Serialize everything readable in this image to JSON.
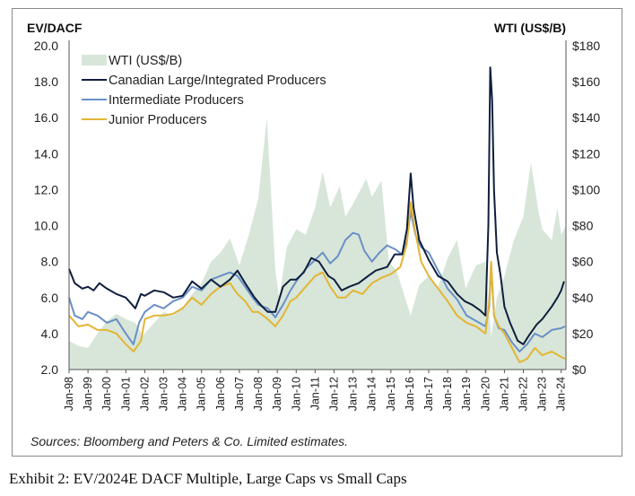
{
  "caption": "Exhibit 2: EV/2024E DACF Multiple, Large Caps vs Small Caps",
  "chart_data": {
    "type": "line",
    "ylabel_left": "EV/DACF",
    "ylabel_right": "WTI (US$/B)",
    "ylim_left": [
      2.0,
      20.0
    ],
    "ylim_right": [
      0,
      180
    ],
    "yticks_left": [
      "2.0",
      "4.0",
      "6.0",
      "8.0",
      "10.0",
      "12.0",
      "14.0",
      "16.0",
      "18.0",
      "20.0"
    ],
    "yticks_right": [
      "$0",
      "$20",
      "$40",
      "$60",
      "$80",
      "$100",
      "$120",
      "$140",
      "$160",
      "$180"
    ],
    "xlim": [
      1998.0,
      2024.25
    ],
    "xticks": [
      "Jan-98",
      "Jan-99",
      "Jan-00",
      "Jan-01",
      "Jan-02",
      "Jan-03",
      "Jan-04",
      "Jan-05",
      "Jan-06",
      "Jan-07",
      "Jan-08",
      "Jan-09",
      "Jan-10",
      "Jan-11",
      "Jan-12",
      "Jan-13",
      "Jan-14",
      "Jan-15",
      "Jan-16",
      "Jan-17",
      "Jan-18",
      "Jan-19",
      "Jan-20",
      "Jan-21",
      "Jan-22",
      "Jan-23",
      "Jan-24"
    ],
    "legend_position": "top-left",
    "grid": false,
    "source": "Sources: Bloomberg and Peters & Co. Limited estimates.",
    "series": [
      {
        "name": "WTI (US$/B)",
        "kind": "area",
        "axis": "right",
        "color": "#d7e6d9",
        "points": [
          [
            1998.0,
            16
          ],
          [
            1998.5,
            13
          ],
          [
            1999.0,
            12
          ],
          [
            1999.5,
            20
          ],
          [
            2000.0,
            27
          ],
          [
            2000.5,
            31
          ],
          [
            2001.0,
            28
          ],
          [
            2001.5,
            26
          ],
          [
            2001.9,
            19
          ],
          [
            2002.5,
            26
          ],
          [
            2003.0,
            32
          ],
          [
            2003.5,
            30
          ],
          [
            2004.0,
            34
          ],
          [
            2004.5,
            42
          ],
          [
            2005.0,
            48
          ],
          [
            2005.5,
            60
          ],
          [
            2006.0,
            65
          ],
          [
            2006.5,
            73
          ],
          [
            2007.0,
            58
          ],
          [
            2007.5,
            75
          ],
          [
            2008.0,
            95
          ],
          [
            2008.45,
            140
          ],
          [
            2008.9,
            55
          ],
          [
            2009.1,
            40
          ],
          [
            2009.5,
            68
          ],
          [
            2010.0,
            78
          ],
          [
            2010.5,
            75
          ],
          [
            2011.0,
            90
          ],
          [
            2011.4,
            110
          ],
          [
            2011.8,
            90
          ],
          [
            2012.3,
            102
          ],
          [
            2012.6,
            85
          ],
          [
            2013.0,
            92
          ],
          [
            2013.7,
            106
          ],
          [
            2014.0,
            96
          ],
          [
            2014.5,
            105
          ],
          [
            2014.9,
            60
          ],
          [
            2015.3,
            55
          ],
          [
            2015.6,
            45
          ],
          [
            2016.05,
            30
          ],
          [
            2016.5,
            47
          ],
          [
            2017.0,
            52
          ],
          [
            2017.5,
            46
          ],
          [
            2018.0,
            62
          ],
          [
            2018.5,
            72
          ],
          [
            2018.95,
            45
          ],
          [
            2019.5,
            58
          ],
          [
            2020.0,
            60
          ],
          [
            2020.3,
            18
          ],
          [
            2020.6,
            40
          ],
          [
            2021.0,
            52
          ],
          [
            2021.5,
            72
          ],
          [
            2022.0,
            85
          ],
          [
            2022.4,
            115
          ],
          [
            2022.8,
            88
          ],
          [
            2023.0,
            78
          ],
          [
            2023.5,
            72
          ],
          [
            2023.8,
            90
          ],
          [
            2024.0,
            75
          ],
          [
            2024.25,
            80
          ]
        ]
      },
      {
        "name": "Canadian Large/Integrated Producers",
        "kind": "line",
        "axis": "left",
        "color": "#0f1e3d",
        "points": [
          [
            1998.0,
            7.6
          ],
          [
            1998.3,
            6.8
          ],
          [
            1998.7,
            6.5
          ],
          [
            1999.0,
            6.6
          ],
          [
            1999.3,
            6.4
          ],
          [
            1999.6,
            6.8
          ],
          [
            2000.0,
            6.5
          ],
          [
            2000.5,
            6.2
          ],
          [
            2001.0,
            6.0
          ],
          [
            2001.5,
            5.4
          ],
          [
            2001.8,
            6.2
          ],
          [
            2002.0,
            6.1
          ],
          [
            2002.5,
            6.4
          ],
          [
            2003.0,
            6.3
          ],
          [
            2003.5,
            6.0
          ],
          [
            2004.0,
            6.1
          ],
          [
            2004.5,
            6.9
          ],
          [
            2005.0,
            6.5
          ],
          [
            2005.5,
            7.0
          ],
          [
            2006.0,
            6.6
          ],
          [
            2006.5,
            7.0
          ],
          [
            2006.9,
            7.5
          ],
          [
            2007.3,
            6.8
          ],
          [
            2007.8,
            6.0
          ],
          [
            2008.2,
            5.5
          ],
          [
            2008.5,
            5.2
          ],
          [
            2008.9,
            5.2
          ],
          [
            2009.3,
            6.6
          ],
          [
            2009.7,
            7.0
          ],
          [
            2010.0,
            7.0
          ],
          [
            2010.4,
            7.4
          ],
          [
            2010.8,
            8.2
          ],
          [
            2011.2,
            8.0
          ],
          [
            2011.7,
            7.2
          ],
          [
            2012.0,
            7.0
          ],
          [
            2012.4,
            6.4
          ],
          [
            2012.8,
            6.6
          ],
          [
            2013.3,
            6.8
          ],
          [
            2013.8,
            7.2
          ],
          [
            2014.2,
            7.5
          ],
          [
            2014.8,
            7.7
          ],
          [
            2015.2,
            8.4
          ],
          [
            2015.6,
            8.4
          ],
          [
            2015.85,
            9.8
          ],
          [
            2016.05,
            12.9
          ],
          [
            2016.2,
            11.0
          ],
          [
            2016.5,
            9.2
          ],
          [
            2017.0,
            8.1
          ],
          [
            2017.5,
            7.2
          ],
          [
            2018.0,
            6.9
          ],
          [
            2018.5,
            6.2
          ],
          [
            2018.9,
            5.8
          ],
          [
            2019.3,
            5.6
          ],
          [
            2019.7,
            5.3
          ],
          [
            2020.0,
            5.0
          ],
          [
            2020.15,
            10.0
          ],
          [
            2020.25,
            18.8
          ],
          [
            2020.35,
            17.0
          ],
          [
            2020.45,
            12.0
          ],
          [
            2020.6,
            8.5
          ],
          [
            2020.8,
            7.2
          ],
          [
            2021.0,
            5.5
          ],
          [
            2021.3,
            4.6
          ],
          [
            2021.7,
            3.6
          ],
          [
            2022.0,
            3.4
          ],
          [
            2022.3,
            3.9
          ],
          [
            2022.7,
            4.5
          ],
          [
            2023.0,
            4.8
          ],
          [
            2023.5,
            5.5
          ],
          [
            2023.8,
            6.0
          ],
          [
            2024.0,
            6.4
          ],
          [
            2024.15,
            6.9
          ]
        ]
      },
      {
        "name": "Intermediate Producers",
        "kind": "line",
        "axis": "left",
        "color": "#6a8fc7",
        "points": [
          [
            1998.0,
            6.0
          ],
          [
            1998.3,
            5.0
          ],
          [
            1998.7,
            4.8
          ],
          [
            1999.0,
            5.2
          ],
          [
            1999.5,
            5.0
          ],
          [
            2000.0,
            4.6
          ],
          [
            2000.5,
            4.8
          ],
          [
            2001.0,
            4.0
          ],
          [
            2001.4,
            3.4
          ],
          [
            2001.7,
            4.6
          ],
          [
            2002.0,
            5.2
          ],
          [
            2002.5,
            5.6
          ],
          [
            2003.0,
            5.4
          ],
          [
            2003.5,
            5.8
          ],
          [
            2004.0,
            6.0
          ],
          [
            2004.5,
            6.6
          ],
          [
            2005.0,
            6.4
          ],
          [
            2005.5,
            7.0
          ],
          [
            2006.0,
            7.2
          ],
          [
            2006.5,
            7.4
          ],
          [
            2006.9,
            7.2
          ],
          [
            2007.3,
            6.6
          ],
          [
            2007.7,
            6.0
          ],
          [
            2008.0,
            5.6
          ],
          [
            2008.5,
            5.4
          ],
          [
            2008.9,
            4.9
          ],
          [
            2009.3,
            5.6
          ],
          [
            2009.7,
            6.4
          ],
          [
            2010.0,
            6.9
          ],
          [
            2010.5,
            7.6
          ],
          [
            2011.0,
            8.1
          ],
          [
            2011.4,
            8.5
          ],
          [
            2011.8,
            7.9
          ],
          [
            2012.2,
            8.3
          ],
          [
            2012.6,
            9.2
          ],
          [
            2013.0,
            9.6
          ],
          [
            2013.3,
            9.5
          ],
          [
            2013.6,
            8.6
          ],
          [
            2014.0,
            8.0
          ],
          [
            2014.4,
            8.5
          ],
          [
            2014.8,
            8.9
          ],
          [
            2015.2,
            8.7
          ],
          [
            2015.6,
            8.4
          ],
          [
            2015.85,
            9.2
          ],
          [
            2016.05,
            10.8
          ],
          [
            2016.3,
            9.5
          ],
          [
            2016.6,
            8.8
          ],
          [
            2017.0,
            8.5
          ],
          [
            2017.5,
            7.5
          ],
          [
            2018.0,
            6.5
          ],
          [
            2018.5,
            5.9
          ],
          [
            2019.0,
            5.0
          ],
          [
            2019.5,
            4.7
          ],
          [
            2020.0,
            4.4
          ],
          [
            2020.2,
            5.5
          ],
          [
            2020.3,
            7.8
          ],
          [
            2020.45,
            5.0
          ],
          [
            2020.7,
            4.3
          ],
          [
            2021.0,
            4.2
          ],
          [
            2021.4,
            3.5
          ],
          [
            2021.8,
            3.0
          ],
          [
            2022.2,
            3.4
          ],
          [
            2022.6,
            4.0
          ],
          [
            2023.0,
            3.8
          ],
          [
            2023.5,
            4.2
          ],
          [
            2024.0,
            4.3
          ],
          [
            2024.2,
            4.4
          ]
        ]
      },
      {
        "name": "Junior Producers",
        "kind": "line",
        "axis": "left",
        "color": "#e3b533",
        "points": [
          [
            1998.0,
            5.0
          ],
          [
            1998.5,
            4.4
          ],
          [
            1999.0,
            4.5
          ],
          [
            1999.5,
            4.2
          ],
          [
            2000.0,
            4.2
          ],
          [
            2000.5,
            4.0
          ],
          [
            2001.0,
            3.4
          ],
          [
            2001.4,
            3.0
          ],
          [
            2001.8,
            3.6
          ],
          [
            2002.0,
            4.8
          ],
          [
            2002.5,
            5.0
          ],
          [
            2003.0,
            5.0
          ],
          [
            2003.5,
            5.1
          ],
          [
            2004.0,
            5.4
          ],
          [
            2004.5,
            6.0
          ],
          [
            2005.0,
            5.6
          ],
          [
            2005.5,
            6.2
          ],
          [
            2006.0,
            6.6
          ],
          [
            2006.5,
            6.8
          ],
          [
            2006.9,
            6.2
          ],
          [
            2007.3,
            5.8
          ],
          [
            2007.7,
            5.2
          ],
          [
            2008.0,
            5.2
          ],
          [
            2008.5,
            4.8
          ],
          [
            2008.9,
            4.4
          ],
          [
            2009.3,
            5.0
          ],
          [
            2009.7,
            5.8
          ],
          [
            2010.0,
            6.0
          ],
          [
            2010.5,
            6.6
          ],
          [
            2011.0,
            7.2
          ],
          [
            2011.4,
            7.4
          ],
          [
            2011.8,
            6.6
          ],
          [
            2012.2,
            6.0
          ],
          [
            2012.6,
            6.0
          ],
          [
            2013.0,
            6.4
          ],
          [
            2013.5,
            6.2
          ],
          [
            2014.0,
            6.8
          ],
          [
            2014.5,
            7.1
          ],
          [
            2015.0,
            7.3
          ],
          [
            2015.5,
            7.7
          ],
          [
            2015.85,
            9.0
          ],
          [
            2016.05,
            11.3
          ],
          [
            2016.3,
            9.6
          ],
          [
            2016.6,
            8.0
          ],
          [
            2017.0,
            7.2
          ],
          [
            2017.5,
            6.5
          ],
          [
            2018.0,
            5.8
          ],
          [
            2018.5,
            5.0
          ],
          [
            2019.0,
            4.6
          ],
          [
            2019.5,
            4.4
          ],
          [
            2020.0,
            4.0
          ],
          [
            2020.2,
            5.8
          ],
          [
            2020.3,
            8.0
          ],
          [
            2020.45,
            5.0
          ],
          [
            2020.7,
            4.4
          ],
          [
            2021.0,
            4.0
          ],
          [
            2021.4,
            3.2
          ],
          [
            2021.8,
            2.4
          ],
          [
            2022.2,
            2.6
          ],
          [
            2022.6,
            3.2
          ],
          [
            2023.0,
            2.8
          ],
          [
            2023.5,
            3.0
          ],
          [
            2024.0,
            2.7
          ],
          [
            2024.2,
            2.6
          ]
        ]
      }
    ]
  }
}
